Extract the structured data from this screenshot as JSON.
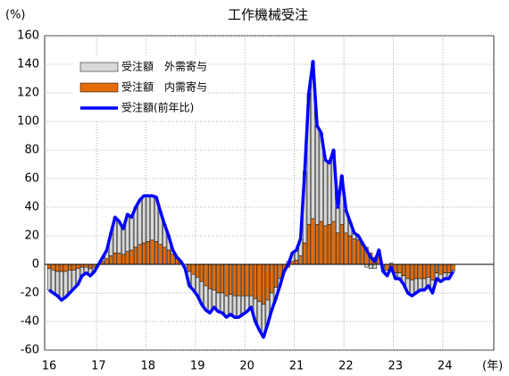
{
  "chart_data": {
    "type": "bar",
    "title": "工作機械受注",
    "y_label": "(%)",
    "x_label": "(年)",
    "stacked": true,
    "grid": true,
    "legend": "upper left",
    "ylim": [
      -60,
      160
    ],
    "yticks": [
      -60,
      -40,
      -20,
      0,
      20,
      40,
      60,
      80,
      100,
      120,
      140,
      160
    ],
    "categories": [
      "16",
      null,
      null,
      null,
      null,
      null,
      null,
      null,
      null,
      null,
      null,
      null,
      "17",
      null,
      null,
      null,
      null,
      null,
      null,
      null,
      null,
      null,
      null,
      null,
      "18",
      null,
      null,
      null,
      null,
      null,
      null,
      null,
      null,
      null,
      null,
      null,
      "19",
      null,
      null,
      null,
      null,
      null,
      null,
      null,
      null,
      null,
      null,
      null,
      "20",
      null,
      null,
      null,
      null,
      null,
      null,
      null,
      null,
      null,
      null,
      null,
      "21",
      null,
      null,
      null,
      null,
      null,
      null,
      null,
      null,
      null,
      null,
      null,
      "22",
      null,
      null,
      null,
      null,
      null,
      null,
      null,
      null,
      null,
      null,
      null,
      "23",
      null,
      null,
      null,
      null,
      null,
      null,
      null,
      null,
      null,
      null,
      null,
      "24",
      null,
      null
    ],
    "series": [
      {
        "name": "受注額　外需寄与",
        "color": "#d9d9d9",
        "values": [
          -15,
          -16,
          -17,
          -20,
          -18,
          -16,
          -13,
          -11,
          -6,
          -4,
          -5,
          -3,
          0,
          3,
          6,
          16,
          25,
          22,
          18,
          26,
          23,
          28,
          31,
          33,
          32,
          31,
          31,
          23,
          16,
          10,
          3,
          1,
          0,
          -3,
          -10,
          -11,
          -13,
          -16,
          -17,
          -17,
          -12,
          -13,
          -14,
          -15,
          -14,
          -15,
          -15,
          -13,
          -11,
          -8,
          -16,
          -20,
          -23,
          -17,
          -12,
          -8,
          -5,
          0,
          2,
          6,
          7,
          12,
          50,
          92,
          110,
          69,
          62,
          46,
          43,
          50,
          18,
          34,
          16,
          10,
          4,
          3,
          1,
          -2,
          -3,
          -3,
          3,
          -3,
          -4,
          1,
          -4,
          -4,
          -6,
          -10,
          -11,
          -10,
          -8,
          -8,
          -6,
          -9,
          -4,
          -5,
          -4,
          -4,
          -1
        ]
      },
      {
        "name": "受注額　内需寄与",
        "color": "#e36c09",
        "values": [
          -3,
          -4,
          -5,
          -5,
          -5,
          -4,
          -4,
          -3,
          -2,
          -2,
          -3,
          -2,
          0,
          2,
          4,
          6,
          8,
          8,
          7,
          9,
          10,
          12,
          14,
          15,
          16,
          17,
          16,
          14,
          12,
          10,
          7,
          4,
          2,
          0,
          -5,
          -7,
          -9,
          -12,
          -15,
          -17,
          -18,
          -20,
          -20,
          -22,
          -21,
          -22,
          -22,
          -22,
          -22,
          -22,
          -24,
          -26,
          -28,
          -25,
          -20,
          -16,
          -10,
          -5,
          -2,
          2,
          3,
          6,
          15,
          28,
          32,
          28,
          30,
          27,
          28,
          30,
          22,
          28,
          22,
          20,
          18,
          17,
          14,
          12,
          8,
          5,
          7,
          -2,
          -4,
          -3,
          -6,
          -6,
          -8,
          -10,
          -11,
          -10,
          -10,
          -10,
          -9,
          -11,
          -6,
          -7,
          -6,
          -6,
          -4
        ]
      },
      {
        "name": "受注額(前年比)",
        "color": "#0000ff",
        "type": "line",
        "values": [
          -18,
          -20,
          -22,
          -25,
          -23,
          -20,
          -17,
          -14,
          -8,
          -6,
          -8,
          -5,
          0,
          5,
          10,
          22,
          33,
          30,
          25,
          35,
          33,
          40,
          45,
          48,
          48,
          48,
          47,
          37,
          28,
          20,
          10,
          5,
          2,
          -3,
          -15,
          -18,
          -22,
          -28,
          -32,
          -34,
          -30,
          -33,
          -34,
          -37,
          -35,
          -37,
          -37,
          -35,
          -33,
          -30,
          -40,
          -46,
          -51,
          -42,
          -32,
          -24,
          -15,
          -5,
          0,
          8,
          10,
          18,
          65,
          120,
          142,
          97,
          92,
          73,
          71,
          80,
          40,
          62,
          38,
          30,
          22,
          20,
          15,
          10,
          5,
          2,
          10,
          -5,
          -8,
          -2,
          -10,
          -10,
          -14,
          -20,
          -22,
          -20,
          -18,
          -18,
          -15,
          -20,
          -10,
          -12,
          -10,
          -10,
          -5
        ]
      }
    ]
  }
}
